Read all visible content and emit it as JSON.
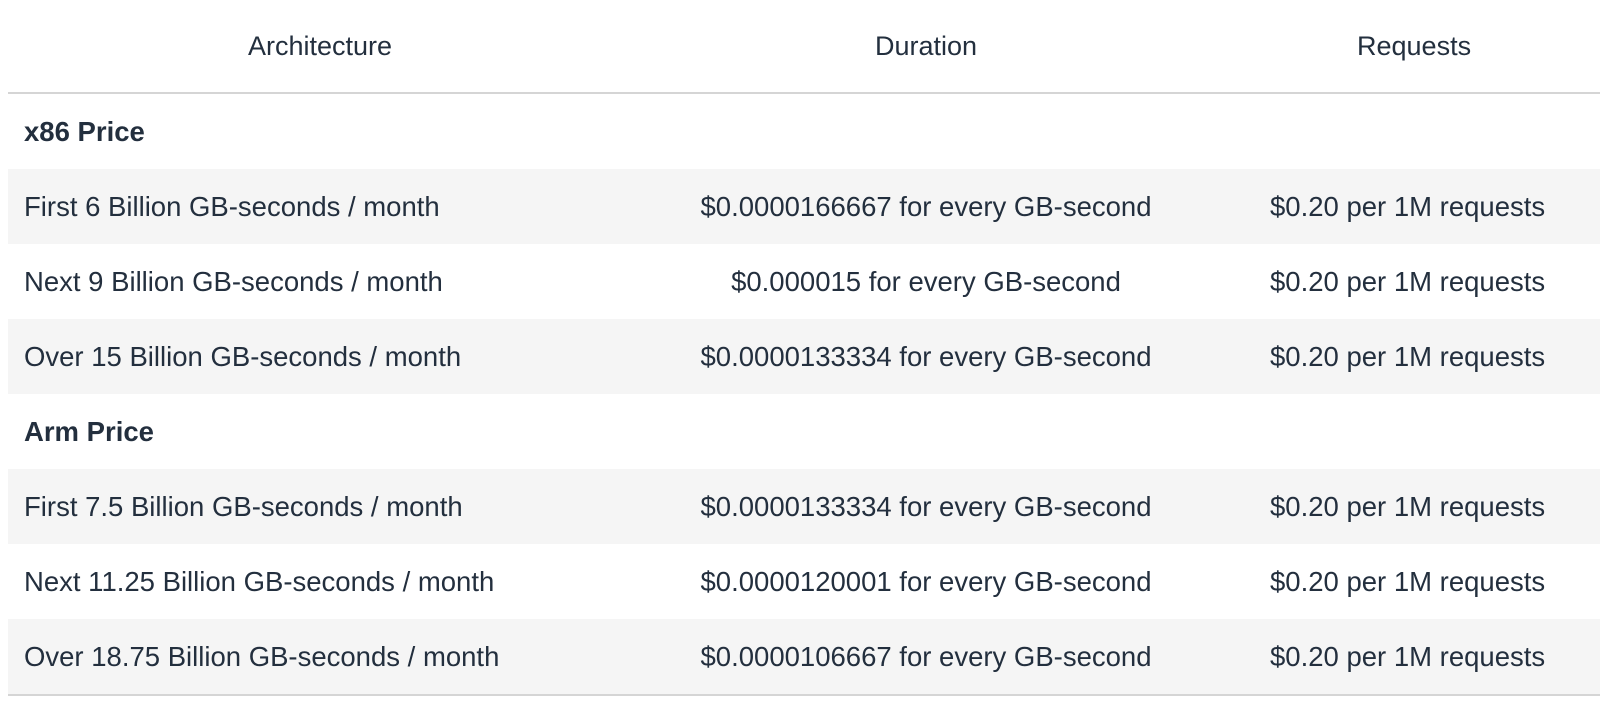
{
  "table": {
    "headers": {
      "architecture": "Architecture",
      "duration": "Duration",
      "requests": "Requests"
    },
    "groups": [
      {
        "title": "x86 Price",
        "rows": [
          {
            "tier": "First 6 Billion GB-seconds / month",
            "duration": "$0.0000166667 for every GB-second",
            "requests": "$0.20 per 1M requests"
          },
          {
            "tier": "Next 9 Billion GB-seconds / month",
            "duration": "$0.000015 for every GB-second",
            "requests": "$0.20 per 1M requests"
          },
          {
            "tier": "Over 15 Billion GB-seconds / month",
            "duration": "$0.0000133334 for every GB-second",
            "requests": "$0.20 per 1M requests"
          }
        ]
      },
      {
        "title": "Arm Price",
        "rows": [
          {
            "tier": "First 7.5 Billion GB-seconds / month",
            "duration": "$0.0000133334 for every GB-second",
            "requests": "$0.20 per 1M requests"
          },
          {
            "tier": "Next 11.25 Billion GB-seconds / month",
            "duration": "$0.0000120001 for every GB-second",
            "requests": "$0.20 per 1M requests"
          },
          {
            "tier": "Over 18.75 Billion GB-seconds / month",
            "duration": "$0.0000106667 for every GB-second",
            "requests": "$0.20 per 1M requests"
          }
        ]
      }
    ]
  }
}
